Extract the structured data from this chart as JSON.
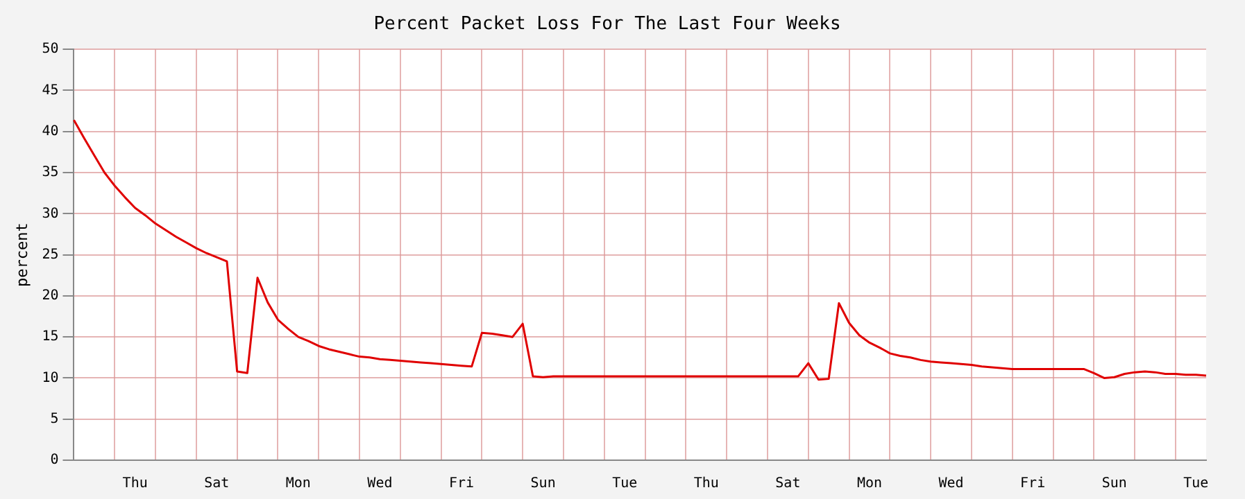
{
  "chart_data": {
    "type": "line",
    "title": "Percent Packet Loss For The Last Four Weeks",
    "ylabel": "percent",
    "categories": [
      null,
      null,
      null,
      null,
      null,
      null,
      "Thu",
      null,
      null,
      null,
      null,
      null,
      null,
      null,
      "Sat",
      null,
      null,
      null,
      null,
      null,
      null,
      null,
      "Mon",
      null,
      null,
      null,
      null,
      null,
      null,
      null,
      "Wed",
      null,
      null,
      null,
      null,
      null,
      null,
      null,
      "Fri",
      null,
      null,
      null,
      null,
      null,
      null,
      null,
      "Sun",
      null,
      null,
      null,
      null,
      null,
      null,
      null,
      "Tue",
      null,
      null,
      null,
      null,
      null,
      null,
      null,
      "Thu",
      null,
      null,
      null,
      null,
      null,
      null,
      null,
      "Sat",
      null,
      null,
      null,
      null,
      null,
      null,
      null,
      "Mon",
      null,
      null,
      null,
      null,
      null,
      null,
      null,
      "Wed",
      null,
      null,
      null,
      null,
      null,
      null,
      null,
      "Fri",
      null,
      null,
      null,
      null,
      null,
      null,
      null,
      "Sun",
      null,
      null,
      null,
      null,
      null,
      null,
      null,
      "Tue",
      null
    ],
    "series": [
      {
        "color": "#e00000",
        "values": [
          41.4,
          39.2,
          37.1,
          35.0,
          33.4,
          32.0,
          30.7,
          29.8,
          28.8,
          28.0,
          27.2,
          26.5,
          25.8,
          25.2,
          24.7,
          24.2,
          10.8,
          10.6,
          22.2,
          19.2,
          17.1,
          16.0,
          15.0,
          14.5,
          13.9,
          13.5,
          13.2,
          12.9,
          12.6,
          12.5,
          12.3,
          12.2,
          12.1,
          12.0,
          11.9,
          11.8,
          11.7,
          11.6,
          11.5,
          11.4,
          15.5,
          15.4,
          15.2,
          15.0,
          16.6,
          10.2,
          10.1,
          10.2,
          10.2,
          10.2,
          10.2,
          10.2,
          10.2,
          10.2,
          10.2,
          10.2,
          10.2,
          10.2,
          10.2,
          10.2,
          10.2,
          10.2,
          10.2,
          10.2,
          10.2,
          10.2,
          10.2,
          10.2,
          10.2,
          10.2,
          10.2,
          10.2,
          11.8,
          9.8,
          9.9,
          19.1,
          16.7,
          15.2,
          14.3,
          13.7,
          13.0,
          12.7,
          12.5,
          12.2,
          12.0,
          11.9,
          11.8,
          11.7,
          11.6,
          11.4,
          11.3,
          11.2,
          11.1,
          11.1,
          11.1,
          11.1,
          11.1,
          11.1,
          11.1,
          11.1,
          10.6,
          10.0,
          10.1,
          10.5,
          10.7,
          10.8,
          10.7,
          10.5,
          10.5,
          10.4,
          10.4,
          10.3
        ]
      }
    ],
    "ylim": [
      0,
      50
    ],
    "yticks": [
      0,
      5,
      10,
      15,
      20,
      25,
      30,
      35,
      40,
      45,
      50
    ],
    "grid": true,
    "legend": false,
    "marker": "none",
    "line_style": "solid"
  }
}
